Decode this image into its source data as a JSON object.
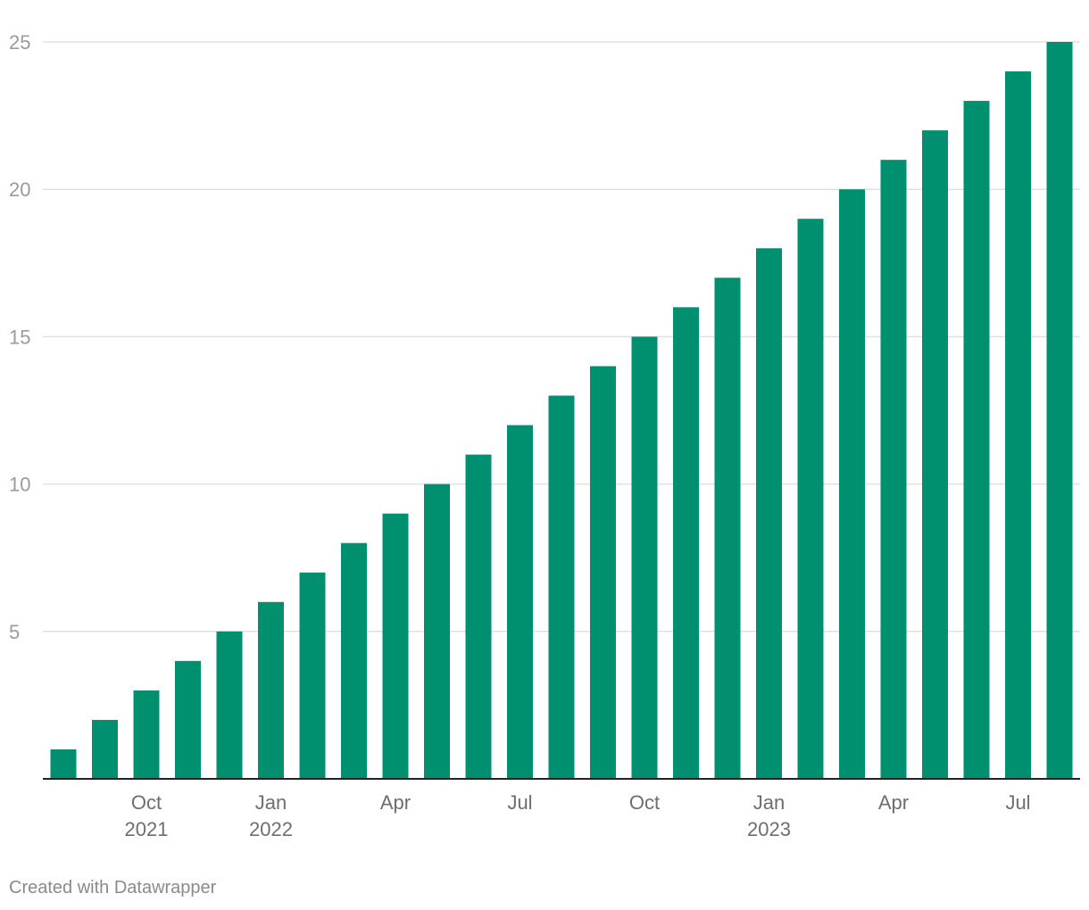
{
  "chart_data": {
    "type": "bar",
    "x": [
      "2021-08",
      "2021-09",
      "2021-10",
      "2021-11",
      "2021-12",
      "2022-01",
      "2022-02",
      "2022-03",
      "2022-04",
      "2022-05",
      "2022-06",
      "2022-07",
      "2022-08",
      "2022-09",
      "2022-10",
      "2022-11",
      "2022-12",
      "2023-01",
      "2023-02",
      "2023-03",
      "2023-04",
      "2023-05",
      "2023-06",
      "2023-07",
      "2023-08"
    ],
    "values": [
      1,
      2,
      3,
      4,
      5,
      6,
      7,
      8,
      9,
      10,
      11,
      12,
      13,
      14,
      15,
      16,
      17,
      18,
      19,
      20,
      21,
      22,
      23,
      24,
      25
    ],
    "ylim": [
      0,
      25
    ],
    "yticks": [
      5,
      10,
      15,
      20,
      25
    ],
    "x_tick_labels": [
      {
        "at": "2021-10",
        "label": "Oct",
        "year": "2021"
      },
      {
        "at": "2022-01",
        "label": "Jan",
        "year": "2022"
      },
      {
        "at": "2022-04",
        "label": "Apr",
        "year": ""
      },
      {
        "at": "2022-07",
        "label": "Jul",
        "year": ""
      },
      {
        "at": "2022-10",
        "label": "Oct",
        "year": ""
      },
      {
        "at": "2023-01",
        "label": "Jan",
        "year": "2023"
      },
      {
        "at": "2023-04",
        "label": "Apr",
        "year": ""
      },
      {
        "at": "2023-07",
        "label": "Jul",
        "year": ""
      }
    ],
    "bar_color": "#00906f",
    "grid": true
  },
  "footer": {
    "credit": "Created with Datawrapper"
  }
}
